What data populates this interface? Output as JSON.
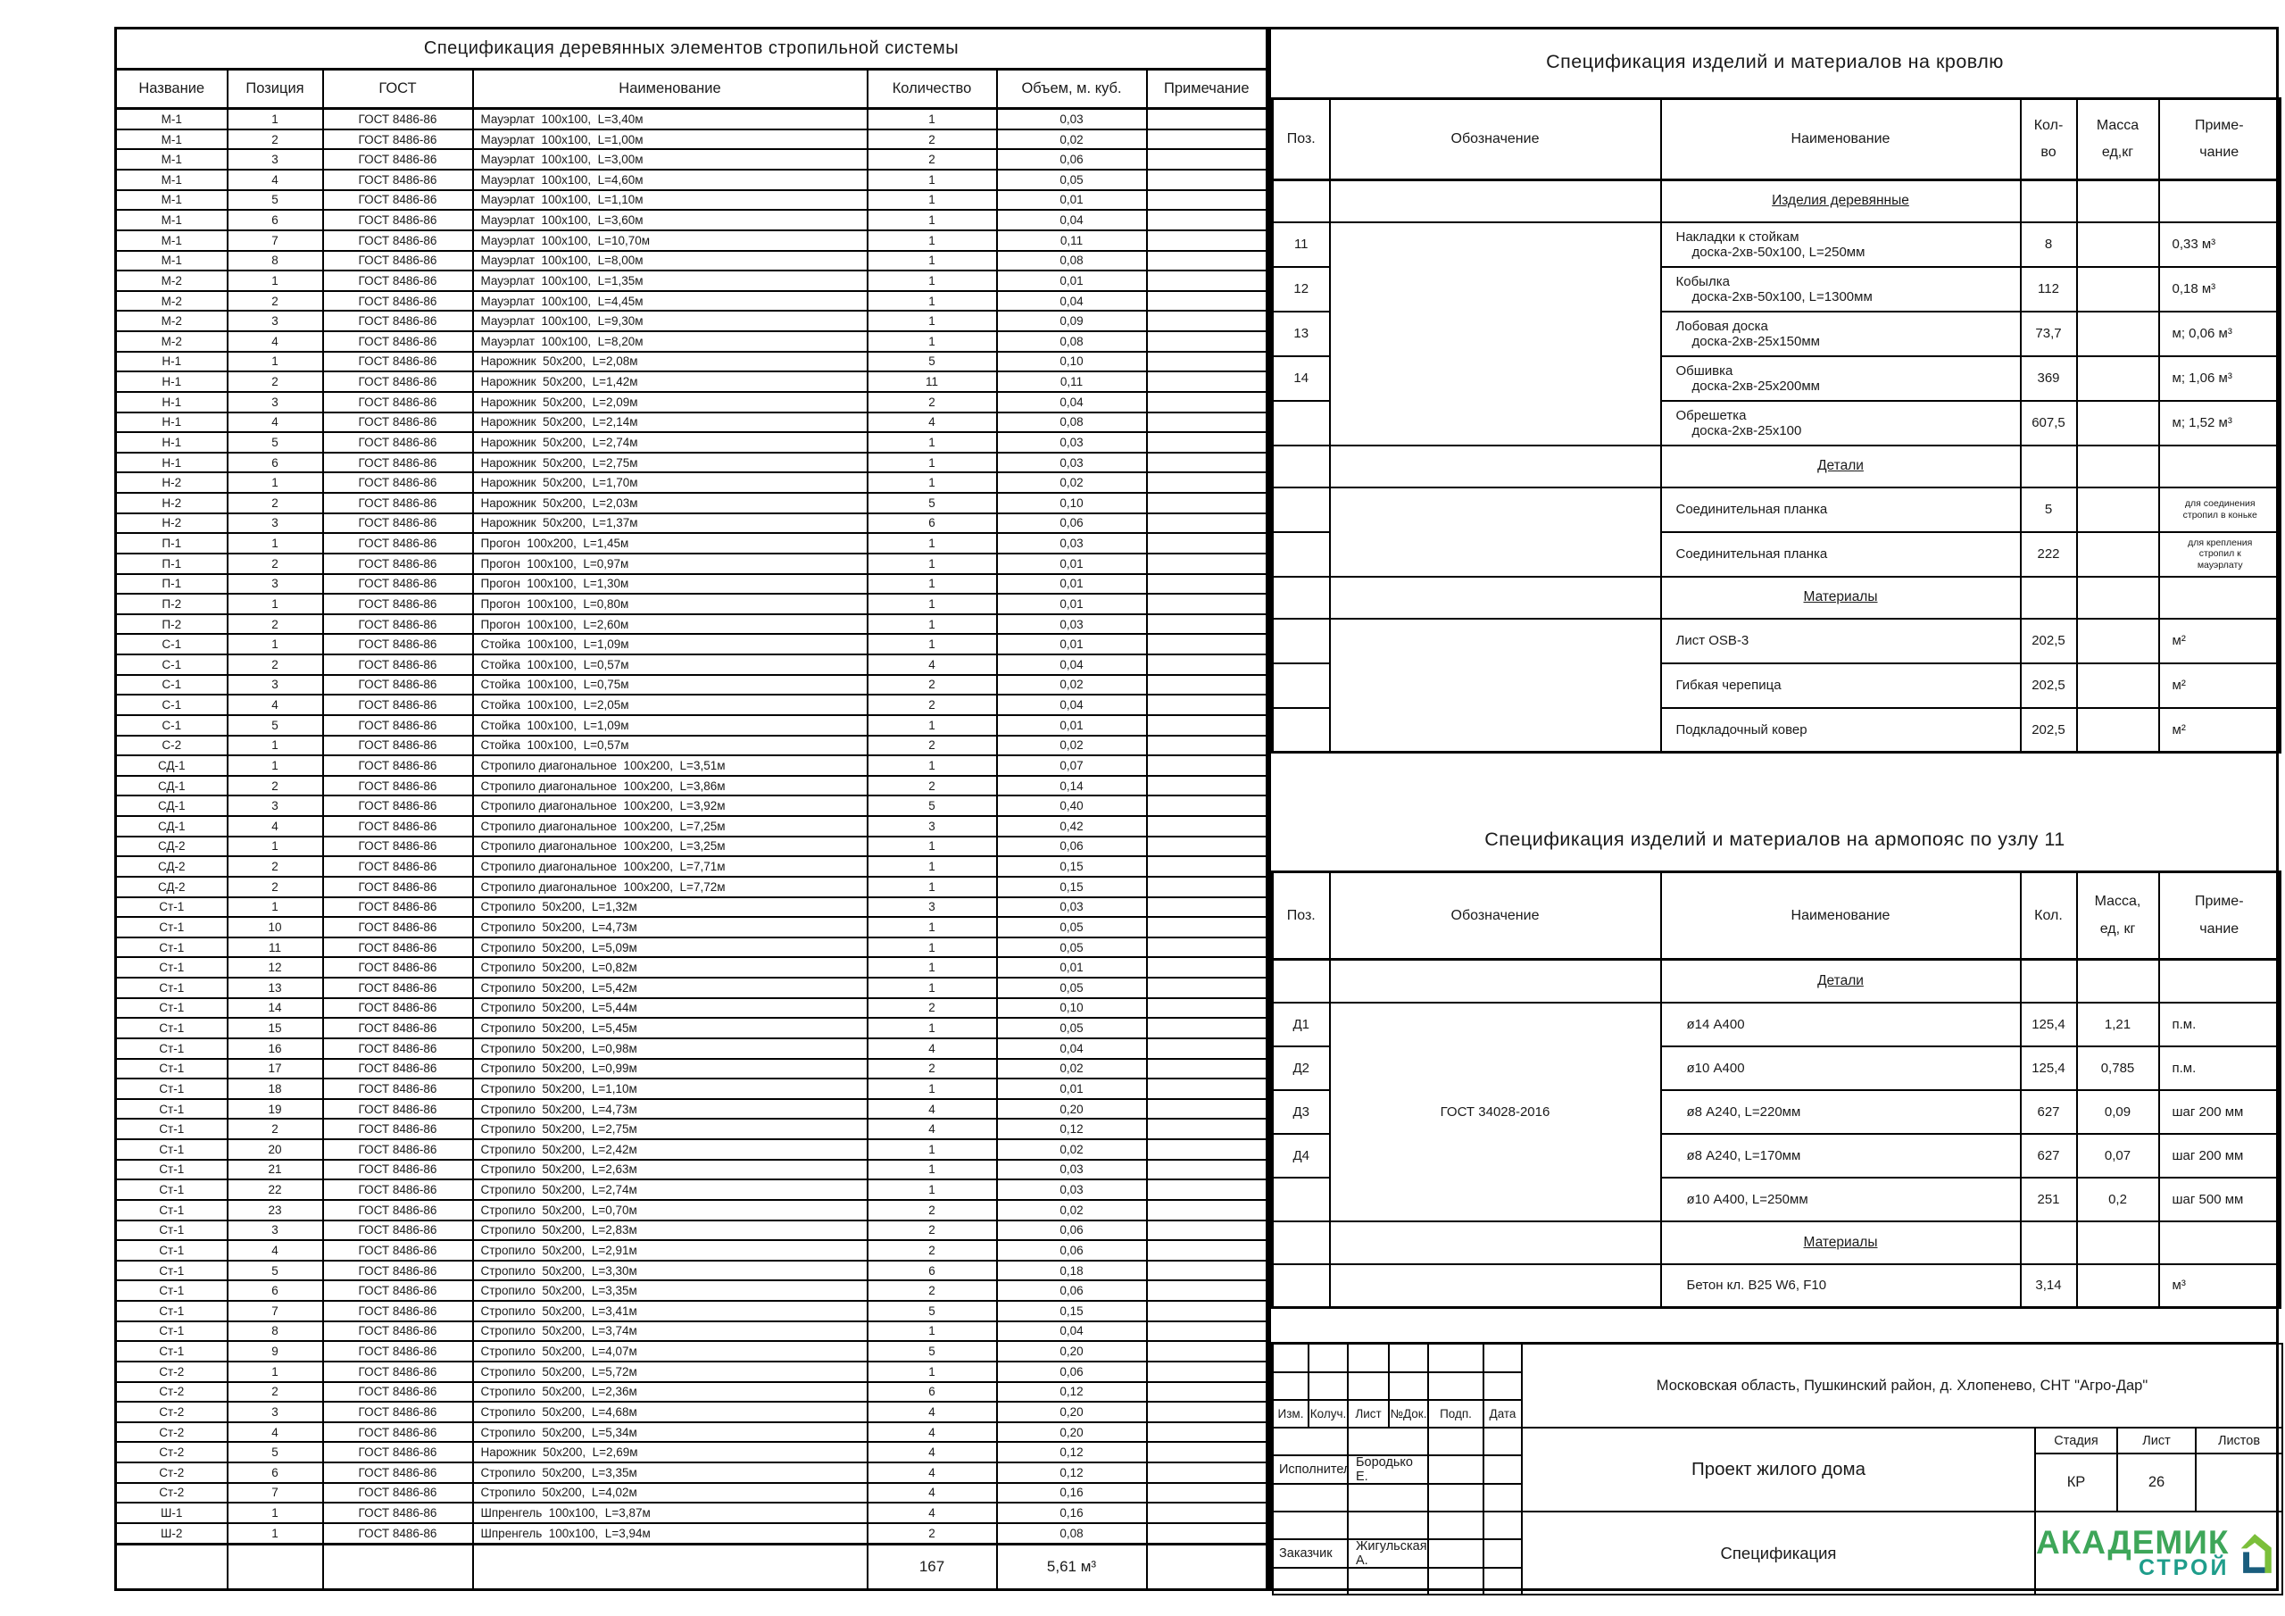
{
  "wood_spec": {
    "title": "Спецификация деревянных элементов стропильной системы",
    "headers": [
      "Название",
      "Позиция",
      "ГОСТ",
      "Наименование",
      "Количество",
      "Объем, м. куб.",
      "Примечание"
    ],
    "gost": "ГОСТ 8486-86",
    "rows": [
      [
        "М-1",
        "1",
        "Мауэрлат  100х100,  L=3,40м",
        "1",
        "0,03"
      ],
      [
        "М-1",
        "2",
        "Мауэрлат  100х100,  L=1,00м",
        "2",
        "0,02"
      ],
      [
        "М-1",
        "3",
        "Мауэрлат  100х100,  L=3,00м",
        "2",
        "0,06"
      ],
      [
        "М-1",
        "4",
        "Мауэрлат  100х100,  L=4,60м",
        "1",
        "0,05"
      ],
      [
        "М-1",
        "5",
        "Мауэрлат  100х100,  L=1,10м",
        "1",
        "0,01"
      ],
      [
        "М-1",
        "6",
        "Мауэрлат  100х100,  L=3,60м",
        "1",
        "0,04"
      ],
      [
        "М-1",
        "7",
        "Мауэрлат  100х100,  L=10,70м",
        "1",
        "0,11"
      ],
      [
        "М-1",
        "8",
        "Мауэрлат  100х100,  L=8,00м",
        "1",
        "0,08"
      ],
      [
        "М-2",
        "1",
        "Мауэрлат  100х100,  L=1,35м",
        "1",
        "0,01"
      ],
      [
        "М-2",
        "2",
        "Мауэрлат  100х100,  L=4,45м",
        "1",
        "0,04"
      ],
      [
        "М-2",
        "3",
        "Мауэрлат  100х100,  L=9,30м",
        "1",
        "0,09"
      ],
      [
        "М-2",
        "4",
        "Мауэрлат  100х100,  L=8,20м",
        "1",
        "0,08"
      ],
      [
        "Н-1",
        "1",
        "Нарожник  50х200,  L=2,08м",
        "5",
        "0,10"
      ],
      [
        "Н-1",
        "2",
        "Нарожник  50х200,  L=1,42м",
        "11",
        "0,11"
      ],
      [
        "Н-1",
        "3",
        "Нарожник  50х200,  L=2,09м",
        "2",
        "0,04"
      ],
      [
        "Н-1",
        "4",
        "Нарожник  50х200,  L=2,14м",
        "4",
        "0,08"
      ],
      [
        "Н-1",
        "5",
        "Нарожник  50х200,  L=2,74м",
        "1",
        "0,03"
      ],
      [
        "Н-1",
        "6",
        "Нарожник  50х200,  L=2,75м",
        "1",
        "0,03"
      ],
      [
        "Н-2",
        "1",
        "Нарожник  50х200,  L=1,70м",
        "1",
        "0,02"
      ],
      [
        "Н-2",
        "2",
        "Нарожник  50х200,  L=2,03м",
        "5",
        "0,10"
      ],
      [
        "Н-2",
        "3",
        "Нарожник  50х200,  L=1,37м",
        "6",
        "0,06"
      ],
      [
        "П-1",
        "1",
        "Прогон  100х200,  L=1,45м",
        "1",
        "0,03"
      ],
      [
        "П-1",
        "2",
        "Прогон  100х100,  L=0,97м",
        "1",
        "0,01"
      ],
      [
        "П-1",
        "3",
        "Прогон  100х100,  L=1,30м",
        "1",
        "0,01"
      ],
      [
        "П-2",
        "1",
        "Прогон  100х100,  L=0,80м",
        "1",
        "0,01"
      ],
      [
        "П-2",
        "2",
        "Прогон  100х100,  L=2,60м",
        "1",
        "0,03"
      ],
      [
        "С-1",
        "1",
        "Стойка  100х100,  L=1,09м",
        "1",
        "0,01"
      ],
      [
        "С-1",
        "2",
        "Стойка  100х100,  L=0,57м",
        "4",
        "0,04"
      ],
      [
        "С-1",
        "3",
        "Стойка  100х100,  L=0,75м",
        "2",
        "0,02"
      ],
      [
        "С-1",
        "4",
        "Стойка  100х100,  L=2,05м",
        "2",
        "0,04"
      ],
      [
        "С-1",
        "5",
        "Стойка  100х100,  L=1,09м",
        "1",
        "0,01"
      ],
      [
        "С-2",
        "1",
        "Стойка  100х100,  L=0,57м",
        "2",
        "0,02"
      ],
      [
        "СД-1",
        "1",
        "Стропило диагональное  100х200,  L=3,51м",
        "1",
        "0,07"
      ],
      [
        "СД-1",
        "2",
        "Стропило диагональное  100х200,  L=3,86м",
        "2",
        "0,14"
      ],
      [
        "СД-1",
        "3",
        "Стропило диагональное  100х200,  L=3,92м",
        "5",
        "0,40"
      ],
      [
        "СД-1",
        "4",
        "Стропило диагональное  100х200,  L=7,25м",
        "3",
        "0,42"
      ],
      [
        "СД-2",
        "1",
        "Стропило диагональное  100х200,  L=3,25м",
        "1",
        "0,06"
      ],
      [
        "СД-2",
        "2",
        "Стропило диагональное  100х200,  L=7,71м",
        "1",
        "0,15"
      ],
      [
        "СД-2",
        "2",
        "Стропило диагональное  100х200,  L=7,72м",
        "1",
        "0,15"
      ],
      [
        "Ст-1",
        "1",
        "Стропило  50х200,  L=1,32м",
        "3",
        "0,03"
      ],
      [
        "Ст-1",
        "10",
        "Стропило  50х200,  L=4,73м",
        "1",
        "0,05"
      ],
      [
        "Ст-1",
        "11",
        "Стропило  50х200,  L=5,09м",
        "1",
        "0,05"
      ],
      [
        "Ст-1",
        "12",
        "Стропило  50х200,  L=0,82м",
        "1",
        "0,01"
      ],
      [
        "Ст-1",
        "13",
        "Стропило  50х200,  L=5,42м",
        "1",
        "0,05"
      ],
      [
        "Ст-1",
        "14",
        "Стропило  50х200,  L=5,44м",
        "2",
        "0,10"
      ],
      [
        "Ст-1",
        "15",
        "Стропило  50х200,  L=5,45м",
        "1",
        "0,05"
      ],
      [
        "Ст-1",
        "16",
        "Стропило  50х200,  L=0,98м",
        "4",
        "0,04"
      ],
      [
        "Ст-1",
        "17",
        "Стропило  50х200,  L=0,99м",
        "2",
        "0,02"
      ],
      [
        "Ст-1",
        "18",
        "Стропило  50х200,  L=1,10м",
        "1",
        "0,01"
      ],
      [
        "Ст-1",
        "19",
        "Стропило  50х200,  L=4,73м",
        "4",
        "0,20"
      ],
      [
        "Ст-1",
        "2",
        "Стропило  50х200,  L=2,75м",
        "4",
        "0,12"
      ],
      [
        "Ст-1",
        "20",
        "Стропило  50х200,  L=2,42м",
        "1",
        "0,02"
      ],
      [
        "Ст-1",
        "21",
        "Стропило  50х200,  L=2,63м",
        "1",
        "0,03"
      ],
      [
        "Ст-1",
        "22",
        "Стропило  50х200,  L=2,74м",
        "1",
        "0,03"
      ],
      [
        "Ст-1",
        "23",
        "Стропило  50х200,  L=0,70м",
        "2",
        "0,02"
      ],
      [
        "Ст-1",
        "3",
        "Стропило  50х200,  L=2,83м",
        "2",
        "0,06"
      ],
      [
        "Ст-1",
        "4",
        "Стропило  50х200,  L=2,91м",
        "2",
        "0,06"
      ],
      [
        "Ст-1",
        "5",
        "Стропило  50х200,  L=3,30м",
        "6",
        "0,18"
      ],
      [
        "Ст-1",
        "6",
        "Стропило  50х200,  L=3,35м",
        "2",
        "0,06"
      ],
      [
        "Ст-1",
        "7",
        "Стропило  50х200,  L=3,41м",
        "5",
        "0,15"
      ],
      [
        "Ст-1",
        "8",
        "Стропило  50х200,  L=3,74м",
        "1",
        "0,04"
      ],
      [
        "Ст-1",
        "9",
        "Стропило  50х200,  L=4,07м",
        "5",
        "0,20"
      ],
      [
        "Ст-2",
        "1",
        "Стропило  50х200,  L=5,72м",
        "1",
        "0,06"
      ],
      [
        "Ст-2",
        "2",
        "Стропило  50х200,  L=2,36м",
        "6",
        "0,12"
      ],
      [
        "Ст-2",
        "3",
        "Стропило  50х200,  L=4,68м",
        "4",
        "0,20"
      ],
      [
        "Ст-2",
        "4",
        "Стропило  50х200,  L=5,34м",
        "4",
        "0,20"
      ],
      [
        "Ст-2",
        "5",
        "Нарожник  50х200,  L=2,69м",
        "4",
        "0,12"
      ],
      [
        "Ст-2",
        "6",
        "Стропило  50х200,  L=3,35м",
        "4",
        "0,12"
      ],
      [
        "Ст-2",
        "7",
        "Стропило  50х200,  L=4,02м",
        "4",
        "0,16"
      ],
      [
        "Ш-1",
        "1",
        "Шпренгель  100х100,  L=3,87м",
        "4",
        "0,16"
      ],
      [
        "Ш-2",
        "1",
        "Шпренгель  100х100,  L=3,94м",
        "2",
        "0,08"
      ]
    ],
    "total_qty": "167",
    "total_vol": "5,61 м³"
  },
  "roof_spec": {
    "title": "Спецификация изделий и материалов на кровлю",
    "headers": {
      "pos": "Поз.",
      "sign": "Обозначение",
      "name": "Наименование",
      "qty": [
        "Кол-",
        "во"
      ],
      "mass": [
        "Масса",
        "ед,кг"
      ],
      "note": [
        "Приме-",
        "чание"
      ]
    },
    "rows": [
      {
        "section": "Изделия деревянные"
      },
      {
        "pos": "11",
        "sign": "",
        "name1": "Накладки к стойкам",
        "name2": "доска-2хв-50х100, L=250мм",
        "qty": "8",
        "mass": "",
        "note": "0,33 м³"
      },
      {
        "pos": "12",
        "name1": "Кобылка",
        "name2": "доска-2хв-50х100, L=1300мм",
        "qty": "112",
        "mass": "",
        "note": "0,18 м³"
      },
      {
        "pos": "13",
        "name1": "Лобовая доска",
        "name2": "доска-2хв-25х150мм",
        "qty": "73,7",
        "mass": "",
        "note": "м; 0,06 м³"
      },
      {
        "pos": "14",
        "name1": "Обшивка",
        "name2": "доска-2хв-25х200мм",
        "qty": "369",
        "mass": "",
        "note": "м; 1,06 м³"
      },
      {
        "pos": "",
        "name1": "Обрешетка",
        "name2": "доска-2хв-25х100",
        "qty": "607,5",
        "mass": "",
        "note": "м; 1,52 м³"
      },
      {
        "section": "Детали"
      },
      {
        "pos": "",
        "sign": "",
        "name1": "Соединительная планка",
        "qty": "5",
        "mass": "",
        "note": "для соединения\nстропил в коньке",
        "small": true
      },
      {
        "pos": "",
        "name1": "Соединительная планка",
        "qty": "222",
        "mass": "",
        "note": "для крепления\nстропил к\nмауэрлату",
        "small": true
      },
      {
        "section": "Материалы"
      },
      {
        "pos": "",
        "sign": "",
        "name1": "Лист OSB-3",
        "qty": "202,5",
        "mass": "",
        "note": "м²"
      },
      {
        "pos": "",
        "name1": "Гибкая черепица",
        "qty": "202,5",
        "mass": "",
        "note": "м²"
      },
      {
        "pos": "",
        "name1": "Подкладочный ковер",
        "qty": "202,5",
        "mass": "",
        "note": "м²"
      }
    ]
  },
  "armo_spec": {
    "title": "Спецификация изделий и материалов на армопояс по узлу 11",
    "headers": {
      "pos": "Поз.",
      "sign": "Обозначение",
      "name": "Наименование",
      "qty": "Кол.",
      "mass": [
        "Масса,",
        "ед, кг"
      ],
      "note": [
        "Приме-",
        "чание"
      ]
    },
    "rows": [
      {
        "section": "Детали"
      },
      {
        "pos": "Д1",
        "sign": "ГОСТ 34028-2016",
        "name1": "ø14 А400",
        "qty": "125,4",
        "mass": "1,21",
        "note": "п.м."
      },
      {
        "pos": "Д2",
        "name1": "ø10 А400",
        "qty": "125,4",
        "mass": "0,785",
        "note": "п.м."
      },
      {
        "pos": "Д3",
        "name1": "ø8 А240, L=220мм",
        "qty": "627",
        "mass": "0,09",
        "note": "шаг 200 мм"
      },
      {
        "pos": "Д4",
        "name1": "ø8 А240, L=170мм",
        "qty": "627",
        "mass": "0,07",
        "note": "шаг 200 мм"
      },
      {
        "pos": "",
        "name1": "ø10 А400, L=250мм",
        "qty": "251",
        "mass": "0,2",
        "note": "шаг 500 мм"
      },
      {
        "section": "Материалы"
      },
      {
        "pos": "",
        "sign": "",
        "name1": "Бетон кл. В25 W6, F10",
        "qty": "3,14",
        "mass": "",
        "note": "м³"
      }
    ]
  },
  "title_block": {
    "address": "Московская область, Пушкинский район, д. Хлопенево, СНТ \"Агро-Дар\"",
    "project": "Проект жилого дома",
    "doc": "Спецификация",
    "cols": [
      "Изм.",
      "Колуч.",
      "Лист",
      "№Док.",
      "Подп.",
      "Дата"
    ],
    "roles": [
      {
        "role": "Исполнитель",
        "name": "Бородько Е."
      },
      {
        "role": "Заказчик",
        "name": "Жигульская А."
      }
    ],
    "stage_headers": [
      "Стадия",
      "Лист",
      "Листов"
    ],
    "stage": "КР",
    "sheet_no": "26",
    "sheets_total": "",
    "logo": {
      "line1": "АКАДЕМИК",
      "line2": "СТРОЙ",
      "green": "#3ea659",
      "teal": "#1f9d8b",
      "house_green": "#7bbf3a",
      "house_blue": "#1a5d7d"
    }
  }
}
